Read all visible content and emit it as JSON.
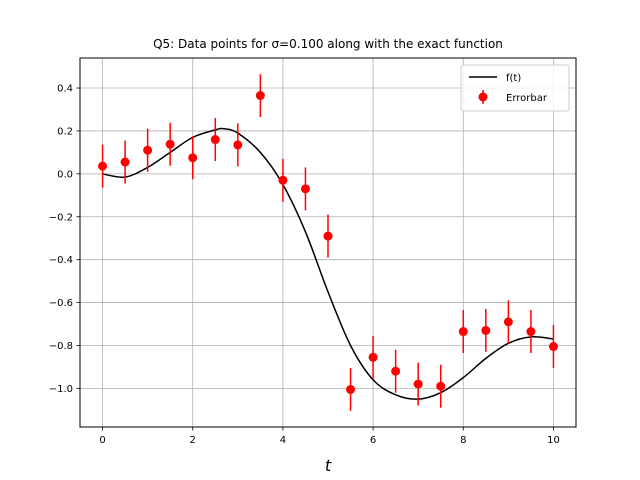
{
  "chart_data": {
    "type": "scatter",
    "title": "Q5: Data points for σ=0.100 along with the exact function",
    "xlabel": "t",
    "ylabel": "",
    "xlim": [
      -0.5,
      10.5
    ],
    "ylim": [
      -1.18,
      0.54
    ],
    "x_ticks": [
      0,
      2,
      4,
      6,
      8,
      10
    ],
    "y_ticks": [
      0.4,
      0.2,
      0.0,
      -0.2,
      -0.4,
      -0.6,
      -0.8,
      -1.0
    ],
    "x_tick_labels": [
      "0",
      "2",
      "4",
      "6",
      "8",
      "10"
    ],
    "y_tick_labels": [
      "0.4",
      "0.2",
      "0.0",
      "−0.2",
      "−0.4",
      "−0.6",
      "−0.8",
      "−1.0"
    ],
    "grid": true,
    "legend_position": "top-right",
    "legend": [
      "f(t)",
      "Errorbar"
    ],
    "error": 0.1,
    "series": [
      {
        "name": "f(t)",
        "kind": "line",
        "color": "#000000",
        "x": [
          0,
          0.5,
          1,
          1.5,
          2,
          2.5,
          2.7,
          3,
          3.5,
          4,
          4.5,
          5,
          5.5,
          6,
          6.5,
          7,
          7.5,
          8,
          8.5,
          9,
          9.5,
          10
        ],
        "y": [
          0.0,
          -0.015,
          0.03,
          0.1,
          0.17,
          0.205,
          0.21,
          0.19,
          0.1,
          -0.05,
          -0.27,
          -0.55,
          -0.8,
          -0.96,
          -1.03,
          -1.05,
          -1.02,
          -0.95,
          -0.86,
          -0.79,
          -0.76,
          -0.77
        ]
      },
      {
        "name": "Errorbar",
        "kind": "errorbar",
        "color": "#ff0000",
        "x": [
          0,
          0.5,
          1,
          1.5,
          2,
          2.5,
          3,
          3.5,
          4,
          4.5,
          5,
          5.5,
          6,
          6.5,
          7,
          7.5,
          8,
          8.5,
          9,
          9.5,
          10
        ],
        "y": [
          0.036,
          0.055,
          0.11,
          0.138,
          0.075,
          0.16,
          0.135,
          0.365,
          -0.03,
          -0.07,
          -0.29,
          -1.005,
          -0.855,
          -0.92,
          -0.98,
          -0.99,
          -0.735,
          -0.73,
          -0.69,
          -0.735,
          -0.805
        ]
      }
    ]
  }
}
